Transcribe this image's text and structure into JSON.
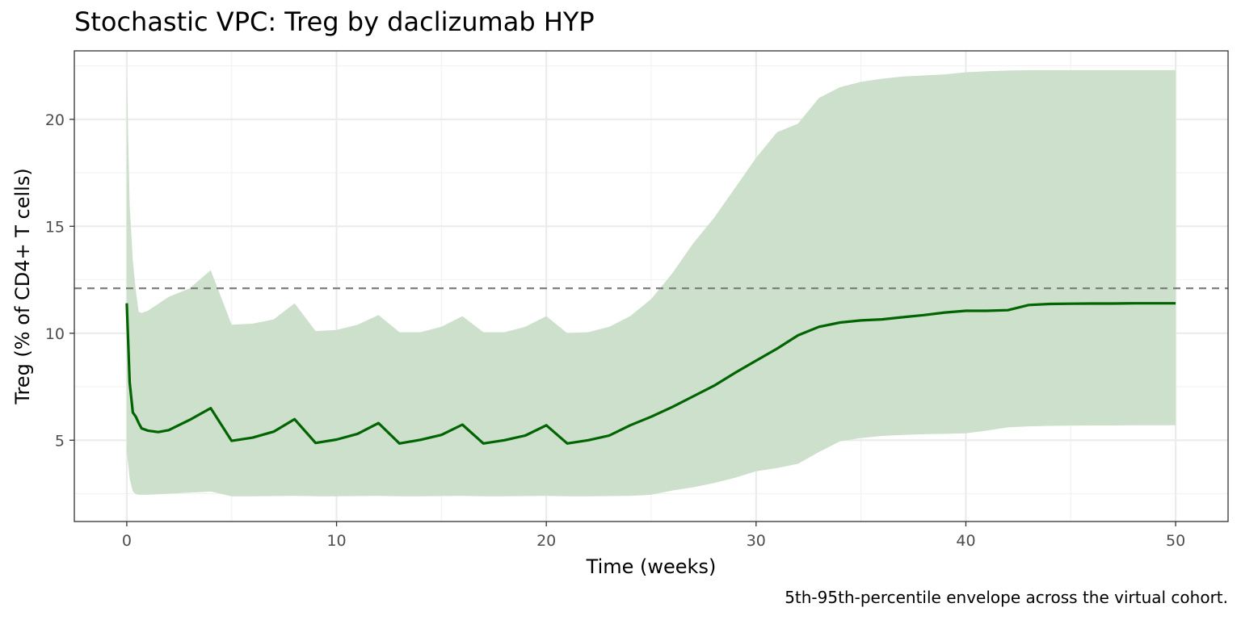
{
  "chart_data": {
    "type": "area",
    "title": "Stochastic VPC: Treg by daclizumab HYP",
    "caption": "5th-95th-percentile envelope across the virtual cohort.",
    "xlabel": "Time (weeks)",
    "ylabel": "Treg (% of CD4+ T cells)",
    "xlim": [
      -2.5,
      52.5
    ],
    "ylim": [
      1.2,
      23.2
    ],
    "x_ticks": [
      0,
      10,
      20,
      30,
      40,
      50
    ],
    "y_ticks": [
      5,
      10,
      15,
      20
    ],
    "grid": true,
    "colors": {
      "median": "#006400",
      "band": "#cde0cc",
      "reference": "#808080"
    },
    "reference_line": {
      "y": 12.1,
      "style": "dashed"
    },
    "series": [
      {
        "role": "median",
        "x": [
          0,
          0.14,
          0.29,
          0.43,
          0.57,
          0.71,
          0.86,
          1,
          1.5,
          2,
          3,
          4,
          5,
          6,
          7,
          8,
          9,
          10,
          11,
          12,
          13,
          14,
          15,
          16,
          17,
          18,
          19,
          20,
          21,
          22,
          23,
          24,
          25,
          26,
          27,
          28,
          29,
          30,
          31,
          32,
          33,
          34,
          35,
          36,
          37,
          38,
          39,
          40,
          41,
          42,
          43,
          44,
          45,
          46,
          47,
          48,
          49,
          50
        ],
        "y": [
          11.4,
          7.7,
          6.3,
          6.1,
          5.8,
          5.55,
          5.5,
          5.45,
          5.38,
          5.47,
          5.95,
          6.5,
          4.97,
          5.12,
          5.4,
          5.98,
          4.87,
          5.03,
          5.3,
          5.8,
          4.85,
          5.02,
          5.25,
          5.73,
          4.85,
          5.0,
          5.22,
          5.7,
          4.85,
          5.0,
          5.22,
          5.7,
          6.1,
          6.55,
          7.05,
          7.55,
          8.15,
          8.72,
          9.28,
          9.9,
          10.3,
          10.5,
          10.6,
          10.65,
          10.75,
          10.85,
          10.97,
          11.05,
          11.05,
          11.08,
          11.32,
          11.37,
          11.38,
          11.39,
          11.39,
          11.4,
          11.4,
          11.4
        ]
      },
      {
        "role": "band",
        "x": [
          0,
          0.14,
          0.29,
          0.43,
          0.57,
          0.71,
          0.86,
          1,
          2,
          3,
          4,
          5,
          6,
          7,
          8,
          9,
          10,
          11,
          12,
          13,
          14,
          15,
          16,
          17,
          18,
          19,
          20,
          21,
          22,
          23,
          24,
          25,
          26,
          27,
          28,
          29,
          30,
          31,
          32,
          33,
          34,
          35,
          36,
          37,
          38,
          39,
          40,
          41,
          42,
          43,
          44,
          45,
          46,
          47,
          48,
          49,
          50
        ],
        "upper": [
          22.2,
          16.0,
          13.4,
          12.0,
          11.0,
          10.95,
          11.0,
          11.05,
          11.7,
          12.1,
          12.95,
          10.4,
          10.45,
          10.65,
          11.4,
          10.1,
          10.15,
          10.4,
          10.85,
          10.05,
          10.05,
          10.3,
          10.8,
          10.05,
          10.05,
          10.3,
          10.8,
          10.0,
          10.05,
          10.3,
          10.8,
          11.6,
          12.8,
          14.2,
          15.4,
          16.8,
          18.2,
          19.4,
          19.8,
          21.0,
          21.5,
          21.75,
          21.9,
          22.0,
          22.05,
          22.1,
          22.2,
          22.25,
          22.28,
          22.3,
          22.3,
          22.3,
          22.3,
          22.3,
          22.3,
          22.3,
          22.3
        ],
        "lower": [
          4.5,
          3.2,
          2.6,
          2.48,
          2.45,
          2.45,
          2.45,
          2.45,
          2.5,
          2.55,
          2.6,
          2.38,
          2.38,
          2.39,
          2.4,
          2.38,
          2.38,
          2.39,
          2.4,
          2.38,
          2.38,
          2.39,
          2.4,
          2.38,
          2.38,
          2.39,
          2.4,
          2.38,
          2.38,
          2.39,
          2.4,
          2.45,
          2.65,
          2.8,
          3.0,
          3.25,
          3.55,
          3.7,
          3.9,
          4.45,
          4.95,
          5.1,
          5.2,
          5.25,
          5.28,
          5.3,
          5.32,
          5.45,
          5.6,
          5.65,
          5.67,
          5.68,
          5.69,
          5.69,
          5.7,
          5.7,
          5.7
        ]
      }
    ]
  }
}
